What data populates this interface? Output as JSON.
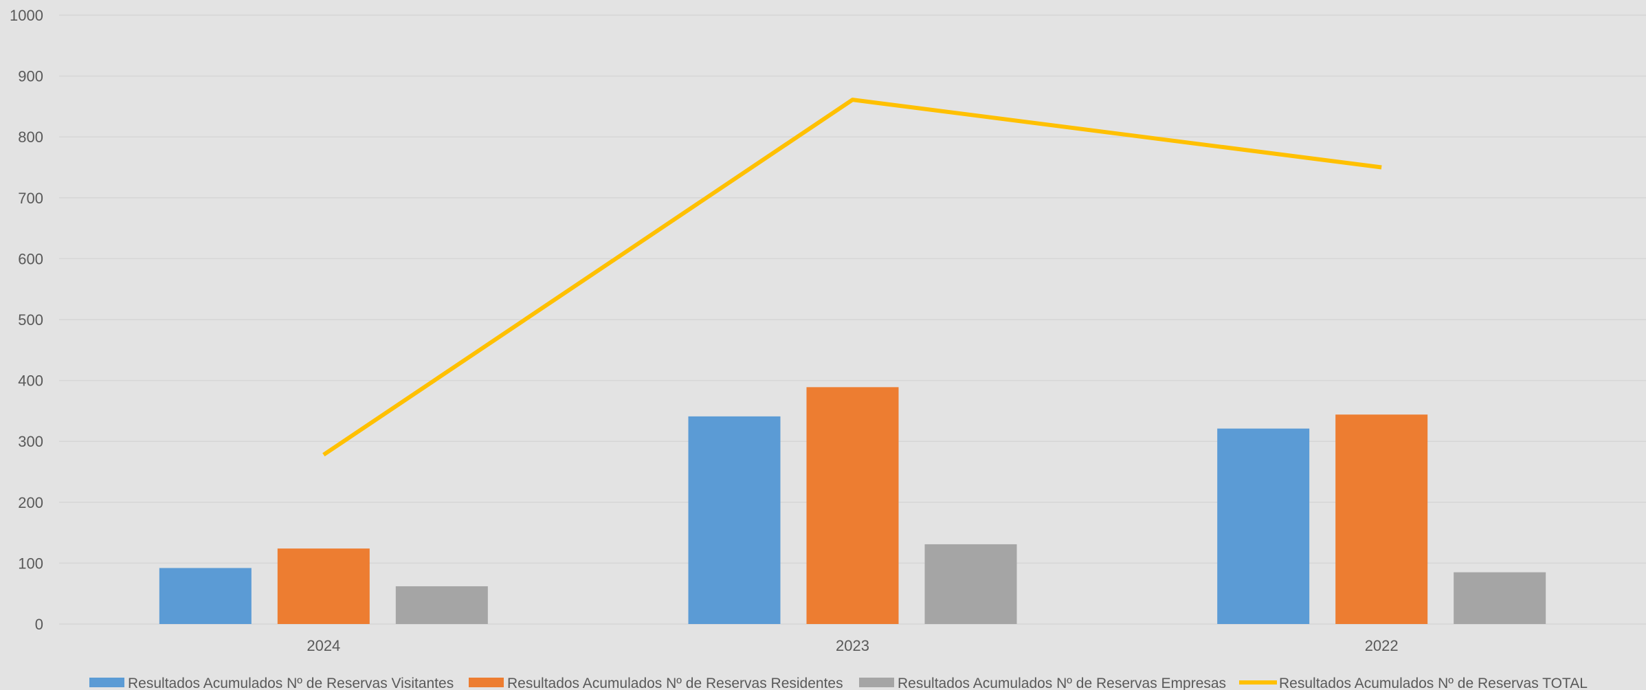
{
  "chart_data": {
    "type": "bar",
    "categories": [
      "2024",
      "2023",
      "2022"
    ],
    "series": [
      {
        "name": "Resultados Acumulados Nº de Reservas Visitantes",
        "type": "bar",
        "color": "#5b9bd5",
        "values": [
          92,
          341,
          321
        ]
      },
      {
        "name": "Resultados Acumulados Nº de Reservas Residentes",
        "type": "bar",
        "color": "#ed7d31",
        "values": [
          124,
          389,
          344
        ]
      },
      {
        "name": "Resultados Acumulados Nº de Reservas Empresas",
        "type": "bar",
        "color": "#a5a5a5",
        "values": [
          62,
          131,
          85
        ]
      },
      {
        "name": "Resultados Acumulados Nº de Reservas TOTAL",
        "type": "line",
        "color": "#ffc000",
        "values": [
          278,
          861,
          750
        ]
      }
    ],
    "y_ticks": [
      "0",
      "100",
      "200",
      "300",
      "400",
      "500",
      "600",
      "700",
      "800",
      "900",
      "1000"
    ],
    "ylim": [
      0,
      1000
    ],
    "grid": true,
    "legend_position": "bottom",
    "title": "",
    "xlabel": "",
    "ylabel": ""
  }
}
